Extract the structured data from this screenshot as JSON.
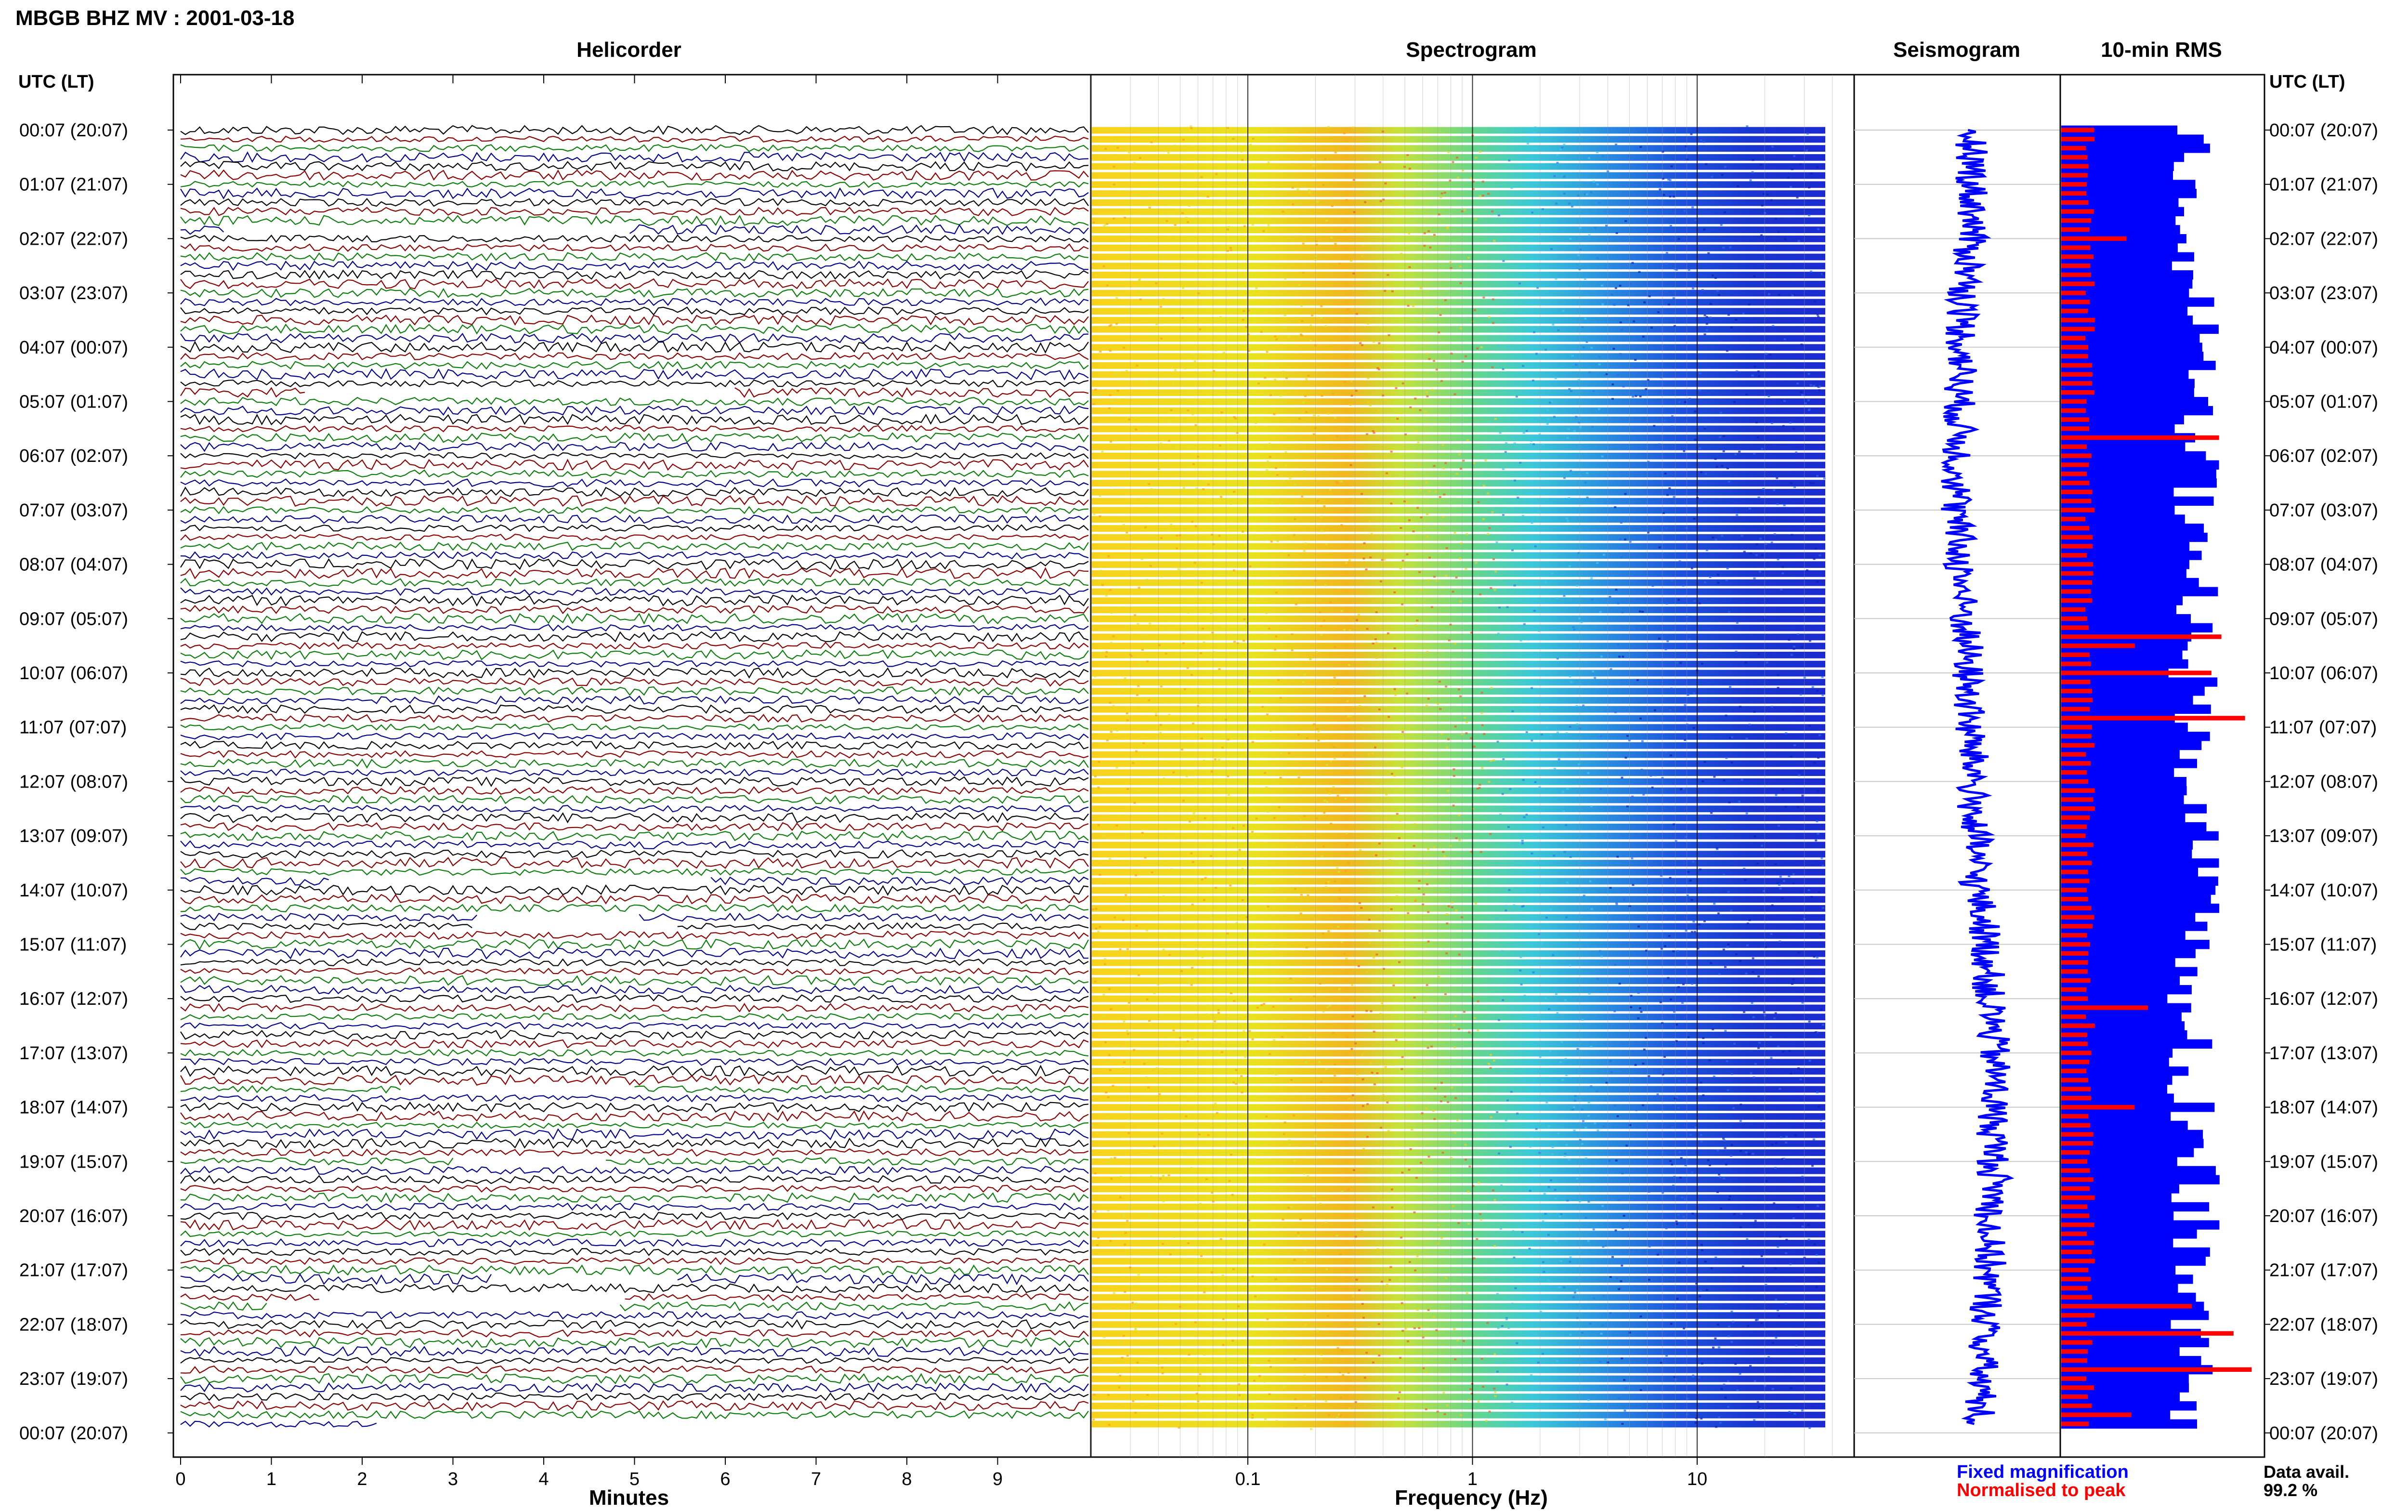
{
  "page": {
    "title": "MBGB BHZ MV : 2001-03-18",
    "time_axis_label_left": "UTC (LT)",
    "time_axis_label_right": "UTC (LT)"
  },
  "panels": {
    "helicorder": "Helicorder",
    "spectrogram": "Spectrogram",
    "seismogram": "Seismogram",
    "rms": "10-min RMS"
  },
  "legend": {
    "fixed": "Fixed magnification",
    "normalised": "Normalised to peak",
    "fixed_color": "#0000ff",
    "normalised_color": "#ff0000"
  },
  "availability": {
    "label": "Data avail.",
    "value": "99.2 %"
  },
  "colors": {
    "trace_colors": [
      "#000000",
      "#8b0000",
      "#0a7d0a",
      "#00008b"
    ],
    "spectrogram_low": "#f5e01a",
    "spectrogram_mid": "#3fd3c8",
    "spectrogram_high": "#1a2fd6",
    "rms_fixed": "#0000ff",
    "rms_normalised": "#ff0000"
  },
  "chart_data": [
    {
      "type": "line",
      "panel": "helicorder",
      "title": "Helicorder",
      "xlabel": "Minutes",
      "xlim": [
        0,
        10
      ],
      "x_ticks": [
        "0",
        "1",
        "2",
        "3",
        "4",
        "5",
        "6",
        "7",
        "8",
        "9"
      ],
      "time_labels": [
        "00:07 (20:07)",
        "01:07 (21:07)",
        "02:07 (22:07)",
        "03:07 (23:07)",
        "04:07 (00:07)",
        "05:07 (01:07)",
        "06:07 (02:07)",
        "07:07 (03:07)",
        "08:07 (04:07)",
        "09:07 (05:07)",
        "10:07 (06:07)",
        "11:07 (07:07)",
        "12:07 (08:07)",
        "13:07 (09:07)",
        "14:07 (10:07)",
        "15:07 (11:07)",
        "16:07 (12:07)",
        "17:07 (13:07)",
        "18:07 (14:07)",
        "19:07 (15:07)",
        "20:07 (16:07)",
        "21:07 (17:07)",
        "22:07 (18:07)",
        "23:07 (19:07)",
        "00:07 (20:07)"
      ],
      "traces_per_hour": 6,
      "trace_count": 144
    },
    {
      "type": "heatmap",
      "panel": "spectrogram",
      "title": "Spectrogram",
      "xlabel": "Frequency (Hz)",
      "x_scale": "log",
      "xlim": [
        0.02,
        50
      ],
      "x_ticks": [
        "0.1",
        "1",
        "10"
      ]
    },
    {
      "type": "line",
      "panel": "seismogram",
      "title": "Seismogram"
    },
    {
      "type": "bar",
      "panel": "rms",
      "title": "10-min RMS",
      "series": [
        {
          "name": "Fixed magnification",
          "color": "#0000ff"
        },
        {
          "name": "Normalised to peak",
          "color": "#ff0000"
        }
      ]
    }
  ]
}
